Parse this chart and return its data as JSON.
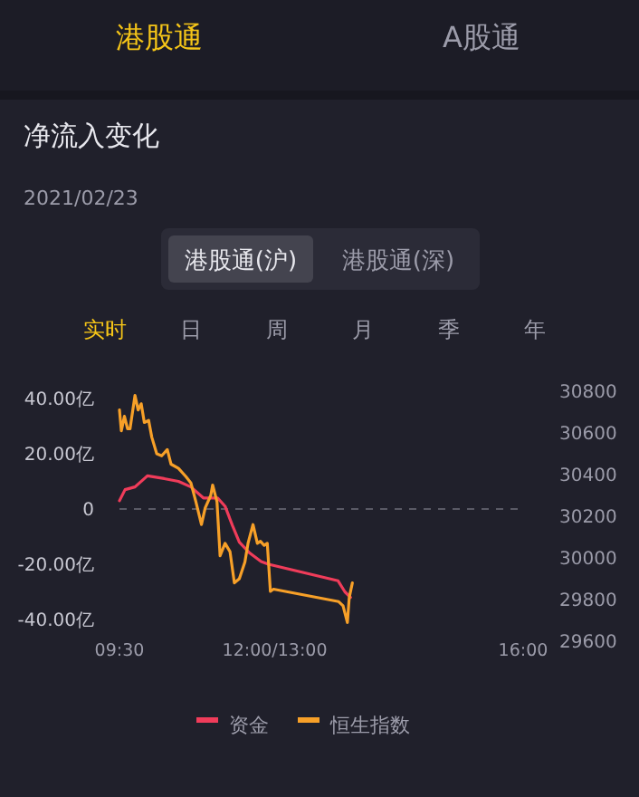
{
  "chart_data": {
    "type": "line",
    "title": "净流入变化",
    "subtitle": "2021/02/23",
    "annotations": [
      "港股通",
      "A股通",
      "港股通(沪)",
      "港股通(深)",
      "实时",
      "日",
      "周",
      "月",
      "季",
      "年"
    ],
    "xlim": [
      9.5,
      16
    ],
    "xticks": [
      {
        "value": 9.5,
        "label": "09:30"
      },
      {
        "value": 12,
        "label": "12:00/13:00"
      },
      {
        "value": 16,
        "label": "16:00"
      }
    ],
    "ylim": [
      -40,
      40
    ],
    "yticks": [
      {
        "value": 40,
        "label": "40.00亿"
      },
      {
        "value": 20,
        "label": "20.00亿"
      },
      0,
      {
        "value": -20,
        "label": "-20.00亿"
      },
      {
        "value": -40,
        "label": "-40.00亿"
      }
    ],
    "y2lim": [
      29600,
      30800
    ],
    "y2ticks": [
      29600,
      29800,
      30000,
      30200,
      30400,
      30600,
      30800
    ],
    "grid": false,
    "legend": "bottom",
    "line_style": "solid",
    "marker": "none",
    "ref_lines": [
      {
        "axis": "y",
        "value": 0,
        "color": "#5a5a66",
        "line_style": "dashed"
      }
    ],
    "series": [
      {
        "name": "资金",
        "color": "#f03c5a",
        "x": [
          9.5,
          9.59,
          9.75,
          9.95,
          10.22,
          10.45,
          10.65,
          10.85,
          11.08,
          11.2,
          11.32,
          11.43,
          11.6,
          11.78,
          11.9,
          13.02,
          13.13,
          13.22
        ],
        "values": [
          3,
          7,
          8,
          12,
          11,
          10,
          8,
          4,
          4,
          1,
          -6,
          -12,
          -16,
          -19,
          -20,
          -26,
          -30,
          -32
        ]
      },
      {
        "name": "恒生指数",
        "color": "#f7a028",
        "axis": "y2",
        "x": [
          9.5,
          9.53,
          9.58,
          9.63,
          9.67,
          9.75,
          9.8,
          9.85,
          9.9,
          9.97,
          10.02,
          10.1,
          10.18,
          10.27,
          10.33,
          10.45,
          10.57,
          10.65,
          10.73,
          10.82,
          10.88,
          10.97,
          11,
          11.07,
          11.12,
          11.2,
          11.28,
          11.35,
          11.43,
          11.52,
          11.57,
          11.65,
          11.72,
          11.77,
          11.83,
          11.88,
          11.93,
          11.98,
          13.03,
          13.1,
          13.17,
          13.2,
          13.25
        ],
        "values": [
          30710,
          30610,
          30680,
          30620,
          30620,
          30780,
          30710,
          30740,
          30650,
          30660,
          30580,
          30500,
          30490,
          30520,
          30450,
          30430,
          30390,
          30360,
          30270,
          30160,
          30240,
          30300,
          30350,
          30270,
          30010,
          30070,
          30030,
          29880,
          29900,
          29980,
          30070,
          30160,
          30070,
          30080,
          30060,
          30070,
          29840,
          29850,
          29790,
          29770,
          29690,
          29810,
          29880
        ]
      }
    ]
  }
}
